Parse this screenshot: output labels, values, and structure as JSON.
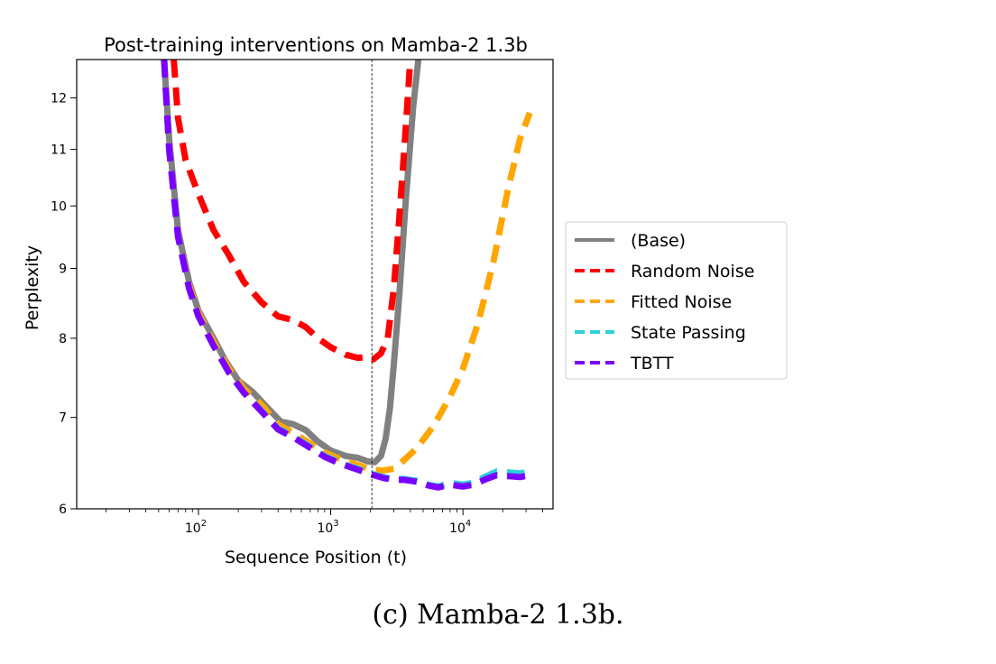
{
  "chart_data": {
    "type": "line",
    "title": "Post-training interventions on Mamba-2 1.3b",
    "xlabel": "Sequence Position (t)",
    "ylabel": "Perplexity",
    "x_scale": "log",
    "y_scale": "log",
    "xlim": [
      12,
      48000
    ],
    "ylim": [
      6,
      12.8
    ],
    "x_ticks": [
      {
        "value": 100,
        "base": "10",
        "exp": "2"
      },
      {
        "value": 1000,
        "base": "10",
        "exp": "3"
      },
      {
        "value": 10000,
        "base": "10",
        "exp": "4"
      }
    ],
    "y_ticks": [
      {
        "value": 6,
        "label": "6"
      },
      {
        "value": 7,
        "label": "7"
      },
      {
        "value": 8,
        "label": "8"
      },
      {
        "value": 9,
        "label": "9"
      },
      {
        "value": 10,
        "label": "10"
      },
      {
        "value": 11,
        "label": "11"
      },
      {
        "value": 12,
        "label": "12"
      }
    ],
    "vline": {
      "x": 2048
    },
    "legend_position": "outside right",
    "series": [
      {
        "name": "(Base)",
        "color": "#808080",
        "dash": "solid",
        "points": [
          [
            55,
            12.8
          ],
          [
            60,
            11.2
          ],
          [
            70,
            9.6
          ],
          [
            85,
            8.8
          ],
          [
            100,
            8.38
          ],
          [
            130,
            8.0
          ],
          [
            160,
            7.7
          ],
          [
            200,
            7.45
          ],
          [
            260,
            7.3
          ],
          [
            330,
            7.12
          ],
          [
            420,
            6.95
          ],
          [
            520,
            6.92
          ],
          [
            650,
            6.85
          ],
          [
            800,
            6.72
          ],
          [
            1000,
            6.62
          ],
          [
            1300,
            6.56
          ],
          [
            1600,
            6.54
          ],
          [
            1900,
            6.5
          ],
          [
            2150,
            6.49
          ],
          [
            2400,
            6.56
          ],
          [
            2600,
            6.75
          ],
          [
            2800,
            7.1
          ],
          [
            3000,
            7.65
          ],
          [
            3300,
            8.6
          ],
          [
            3700,
            10.1
          ],
          [
            4200,
            11.8
          ],
          [
            4600,
            12.8
          ]
        ]
      },
      {
        "name": "Random Noise",
        "color": "#ff0000",
        "dash": "dashed",
        "points": [
          [
            65,
            12.8
          ],
          [
            70,
            11.6
          ],
          [
            80,
            10.8
          ],
          [
            100,
            10.2
          ],
          [
            130,
            9.6
          ],
          [
            170,
            9.2
          ],
          [
            220,
            8.8
          ],
          [
            300,
            8.5
          ],
          [
            400,
            8.3
          ],
          [
            520,
            8.25
          ],
          [
            650,
            8.15
          ],
          [
            800,
            8.0
          ],
          [
            1000,
            7.88
          ],
          [
            1300,
            7.78
          ],
          [
            1600,
            7.74
          ],
          [
            1900,
            7.75
          ],
          [
            2100,
            7.72
          ],
          [
            2400,
            7.8
          ],
          [
            2700,
            8.0
          ],
          [
            3000,
            8.7
          ],
          [
            3300,
            9.8
          ],
          [
            3600,
            11.0
          ],
          [
            4000,
            12.8
          ]
        ]
      },
      {
        "name": "Fitted Noise",
        "color": "#ffa500",
        "dash": "dashed",
        "points": [
          [
            55,
            12.8
          ],
          [
            60,
            11.0
          ],
          [
            70,
            9.5
          ],
          [
            85,
            8.75
          ],
          [
            100,
            8.35
          ],
          [
            130,
            7.95
          ],
          [
            170,
            7.6
          ],
          [
            220,
            7.35
          ],
          [
            300,
            7.15
          ],
          [
            400,
            6.92
          ],
          [
            520,
            6.82
          ],
          [
            700,
            6.7
          ],
          [
            900,
            6.6
          ],
          [
            1200,
            6.52
          ],
          [
            1600,
            6.46
          ],
          [
            2000,
            6.41
          ],
          [
            2500,
            6.4
          ],
          [
            3000,
            6.42
          ],
          [
            3500,
            6.5
          ],
          [
            4500,
            6.65
          ],
          [
            6000,
            6.9
          ],
          [
            8000,
            7.25
          ],
          [
            10000,
            7.6
          ],
          [
            13000,
            8.2
          ],
          [
            17000,
            9.1
          ],
          [
            22000,
            10.3
          ],
          [
            27000,
            11.2
          ],
          [
            32000,
            11.7
          ]
        ]
      },
      {
        "name": "State Passing",
        "color": "#2fd0d8",
        "dash": "dashed",
        "points": [
          [
            55,
            12.8
          ],
          [
            60,
            11.0
          ],
          [
            70,
            9.5
          ],
          [
            85,
            8.7
          ],
          [
            100,
            8.3
          ],
          [
            130,
            7.9
          ],
          [
            170,
            7.55
          ],
          [
            220,
            7.3
          ],
          [
            300,
            7.08
          ],
          [
            400,
            6.87
          ],
          [
            520,
            6.78
          ],
          [
            700,
            6.66
          ],
          [
            900,
            6.56
          ],
          [
            1200,
            6.48
          ],
          [
            1600,
            6.42
          ],
          [
            2000,
            6.37
          ],
          [
            2500,
            6.33
          ],
          [
            3000,
            6.31
          ],
          [
            3600,
            6.31
          ],
          [
            4500,
            6.29
          ],
          [
            5500,
            6.25
          ],
          [
            6500,
            6.23
          ],
          [
            8000,
            6.27
          ],
          [
            10000,
            6.25
          ],
          [
            12000,
            6.27
          ],
          [
            15000,
            6.34
          ],
          [
            18000,
            6.39
          ],
          [
            22000,
            6.38
          ],
          [
            27000,
            6.37
          ],
          [
            32000,
            6.39
          ]
        ]
      },
      {
        "name": "TBTT",
        "color": "#7a00ff",
        "dash": "dashed",
        "points": [
          [
            55,
            12.8
          ],
          [
            60,
            11.0
          ],
          [
            70,
            9.5
          ],
          [
            85,
            8.7
          ],
          [
            100,
            8.3
          ],
          [
            130,
            7.9
          ],
          [
            170,
            7.55
          ],
          [
            220,
            7.3
          ],
          [
            300,
            7.07
          ],
          [
            400,
            6.86
          ],
          [
            520,
            6.77
          ],
          [
            700,
            6.65
          ],
          [
            900,
            6.55
          ],
          [
            1200,
            6.47
          ],
          [
            1600,
            6.41
          ],
          [
            2000,
            6.36
          ],
          [
            2500,
            6.32
          ],
          [
            3000,
            6.3
          ],
          [
            3600,
            6.3
          ],
          [
            4500,
            6.28
          ],
          [
            5500,
            6.24
          ],
          [
            6500,
            6.22
          ],
          [
            8000,
            6.25
          ],
          [
            10000,
            6.23
          ],
          [
            12000,
            6.25
          ],
          [
            15000,
            6.31
          ],
          [
            18000,
            6.35
          ],
          [
            22000,
            6.34
          ],
          [
            27000,
            6.33
          ],
          [
            32000,
            6.35
          ]
        ]
      }
    ]
  },
  "caption": "(c) Mamba-2 1.3b."
}
